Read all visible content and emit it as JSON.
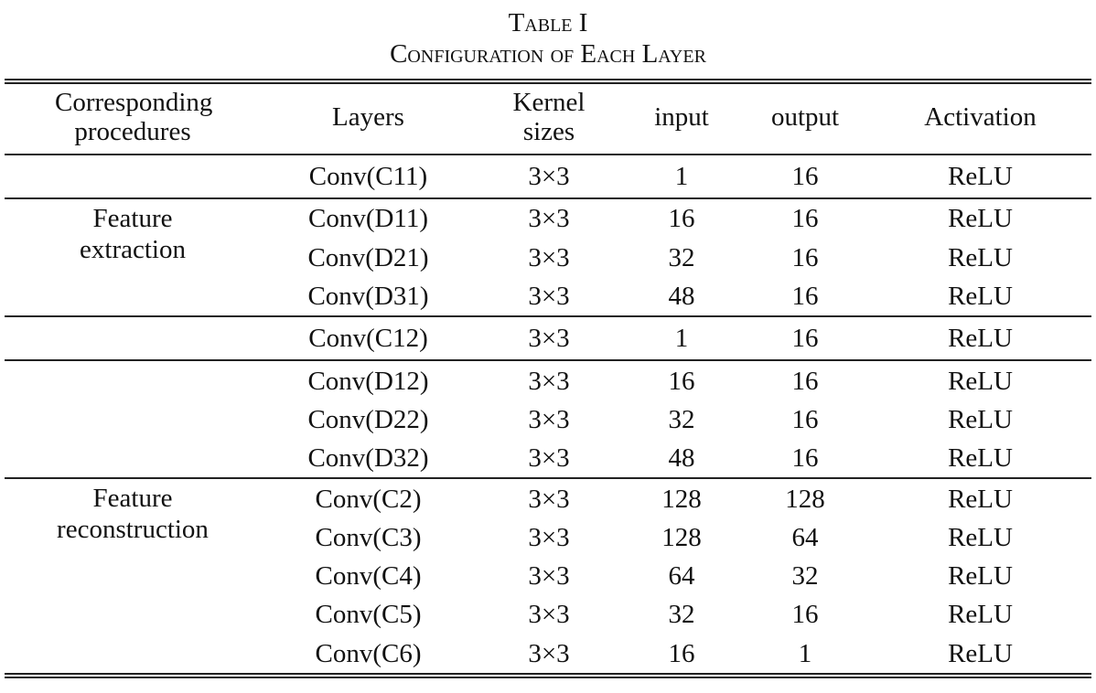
{
  "caption": {
    "label": "Table I",
    "title": "Configuration of Each Layer"
  },
  "table": {
    "header": [
      "Corresponding procedures",
      "Layers",
      "Kernel sizes",
      "input",
      "output",
      "Activation"
    ],
    "groups": [
      {
        "rows": [
          [
            "Conv(C11)",
            "3×3",
            1,
            16,
            "ReLU"
          ]
        ]
      },
      {
        "label": "Feature extraction",
        "rows": [
          [
            "Conv(D11)",
            "3×3",
            16,
            16,
            "ReLU"
          ],
          [
            "Conv(D21)",
            "3×3",
            32,
            16,
            "ReLU"
          ],
          [
            "Conv(D31)",
            "3×3",
            48,
            16,
            "ReLU"
          ]
        ]
      },
      {
        "rows": [
          [
            "Conv(C12)",
            "3×3",
            1,
            16,
            "ReLU"
          ]
        ]
      },
      {
        "rows": [
          [
            "Conv(D12)",
            "3×3",
            16,
            16,
            "ReLU"
          ],
          [
            "Conv(D22)",
            "3×3",
            32,
            16,
            "ReLU"
          ],
          [
            "Conv(D32)",
            "3×3",
            48,
            16,
            "ReLU"
          ]
        ]
      },
      {
        "label": "Feature reconstruction",
        "rows": [
          [
            "Conv(C2)",
            "3×3",
            128,
            128,
            "ReLU"
          ],
          [
            "Conv(C3)",
            "3×3",
            128,
            64,
            "ReLU"
          ],
          [
            "Conv(C4)",
            "3×3",
            64,
            32,
            "ReLU"
          ],
          [
            "Conv(C5)",
            "3×3",
            32,
            16,
            "ReLU"
          ],
          [
            "Conv(C6)",
            "3×3",
            16,
            1,
            "ReLU"
          ]
        ]
      }
    ]
  }
}
